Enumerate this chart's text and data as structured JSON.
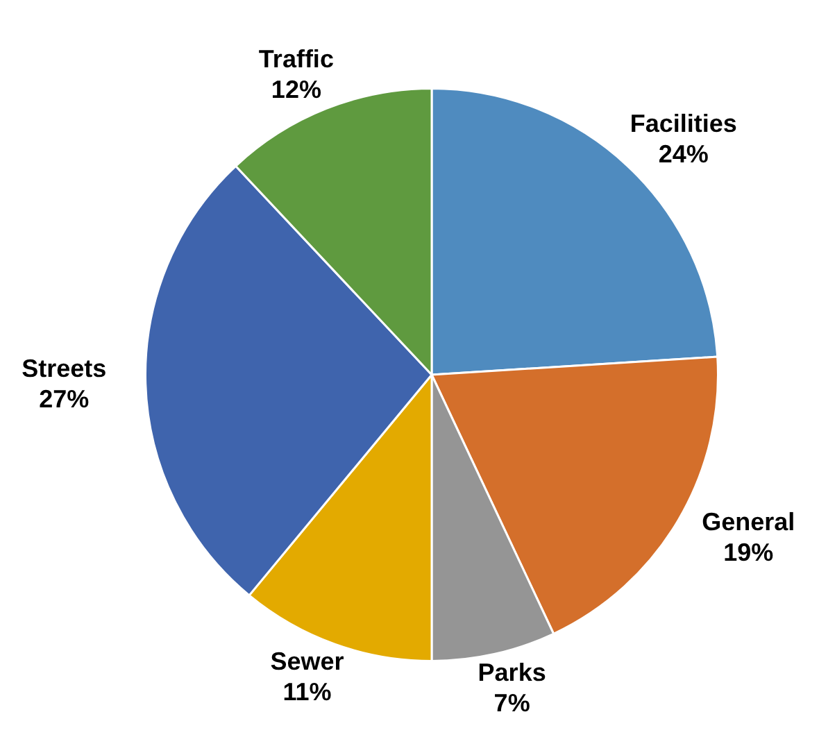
{
  "chart_data": {
    "type": "pie",
    "categories": [
      "Facilities",
      "General",
      "Parks",
      "Sewer",
      "Streets",
      "Traffic"
    ],
    "values": [
      24,
      19,
      7,
      11,
      27,
      12
    ],
    "value_labels": [
      "24%",
      "19%",
      "7%",
      "11%",
      "27%",
      "12%"
    ],
    "colors": [
      "#4f8bbf",
      "#d46f2b",
      "#959595",
      "#e3aa00",
      "#3f64ad",
      "#5f9a3f"
    ],
    "legend": false
  }
}
